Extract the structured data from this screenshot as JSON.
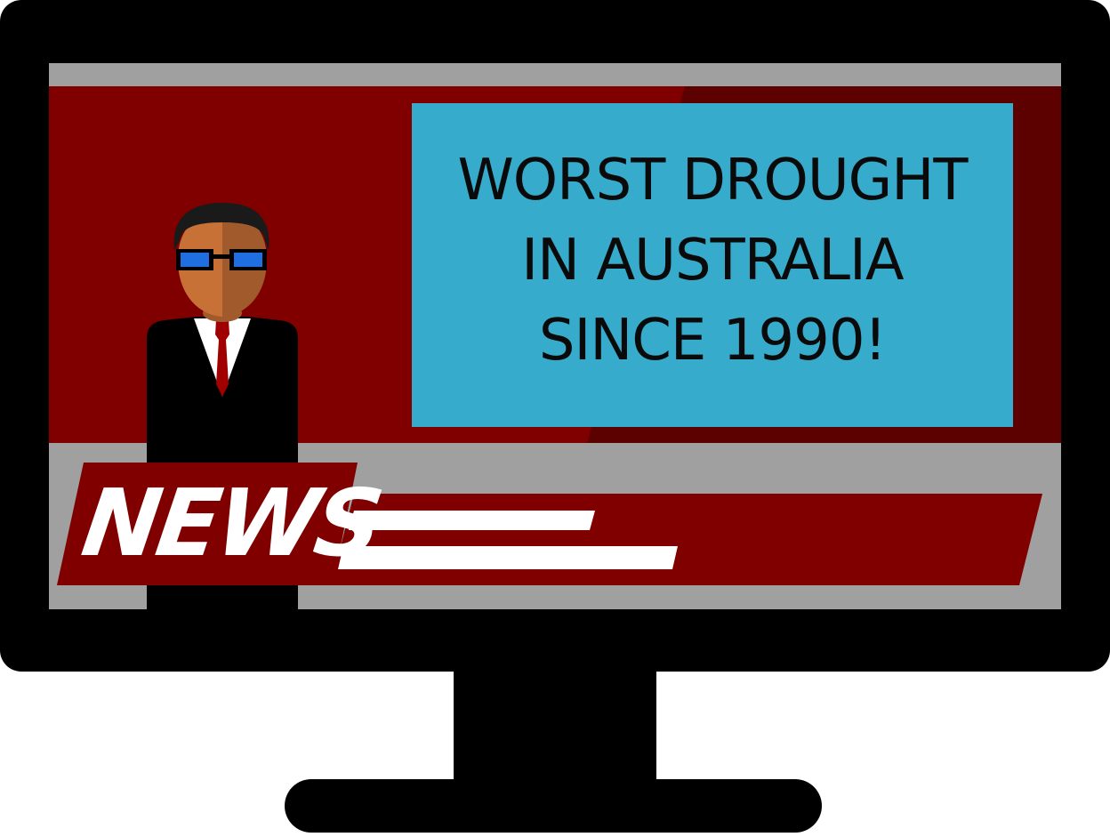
{
  "headline": {
    "lines": [
      "WORST DROUGHT",
      "IN AUSTRALIA",
      "SINCE 1990!"
    ]
  },
  "banner": {
    "label": "NEWS"
  },
  "colors": {
    "bezel": "#000000",
    "screen_gray": "#a0a0a0",
    "studio_red": "#800000",
    "studio_dark_red": "#5c0000",
    "headline_blue": "#37abcb",
    "skin_light": "#c87137",
    "skin_dark": "#a05a2c",
    "hair": "#1a1a1a",
    "glasses_blue": "#1f6fe0",
    "tie_red": "#a00000",
    "white": "#ffffff"
  }
}
